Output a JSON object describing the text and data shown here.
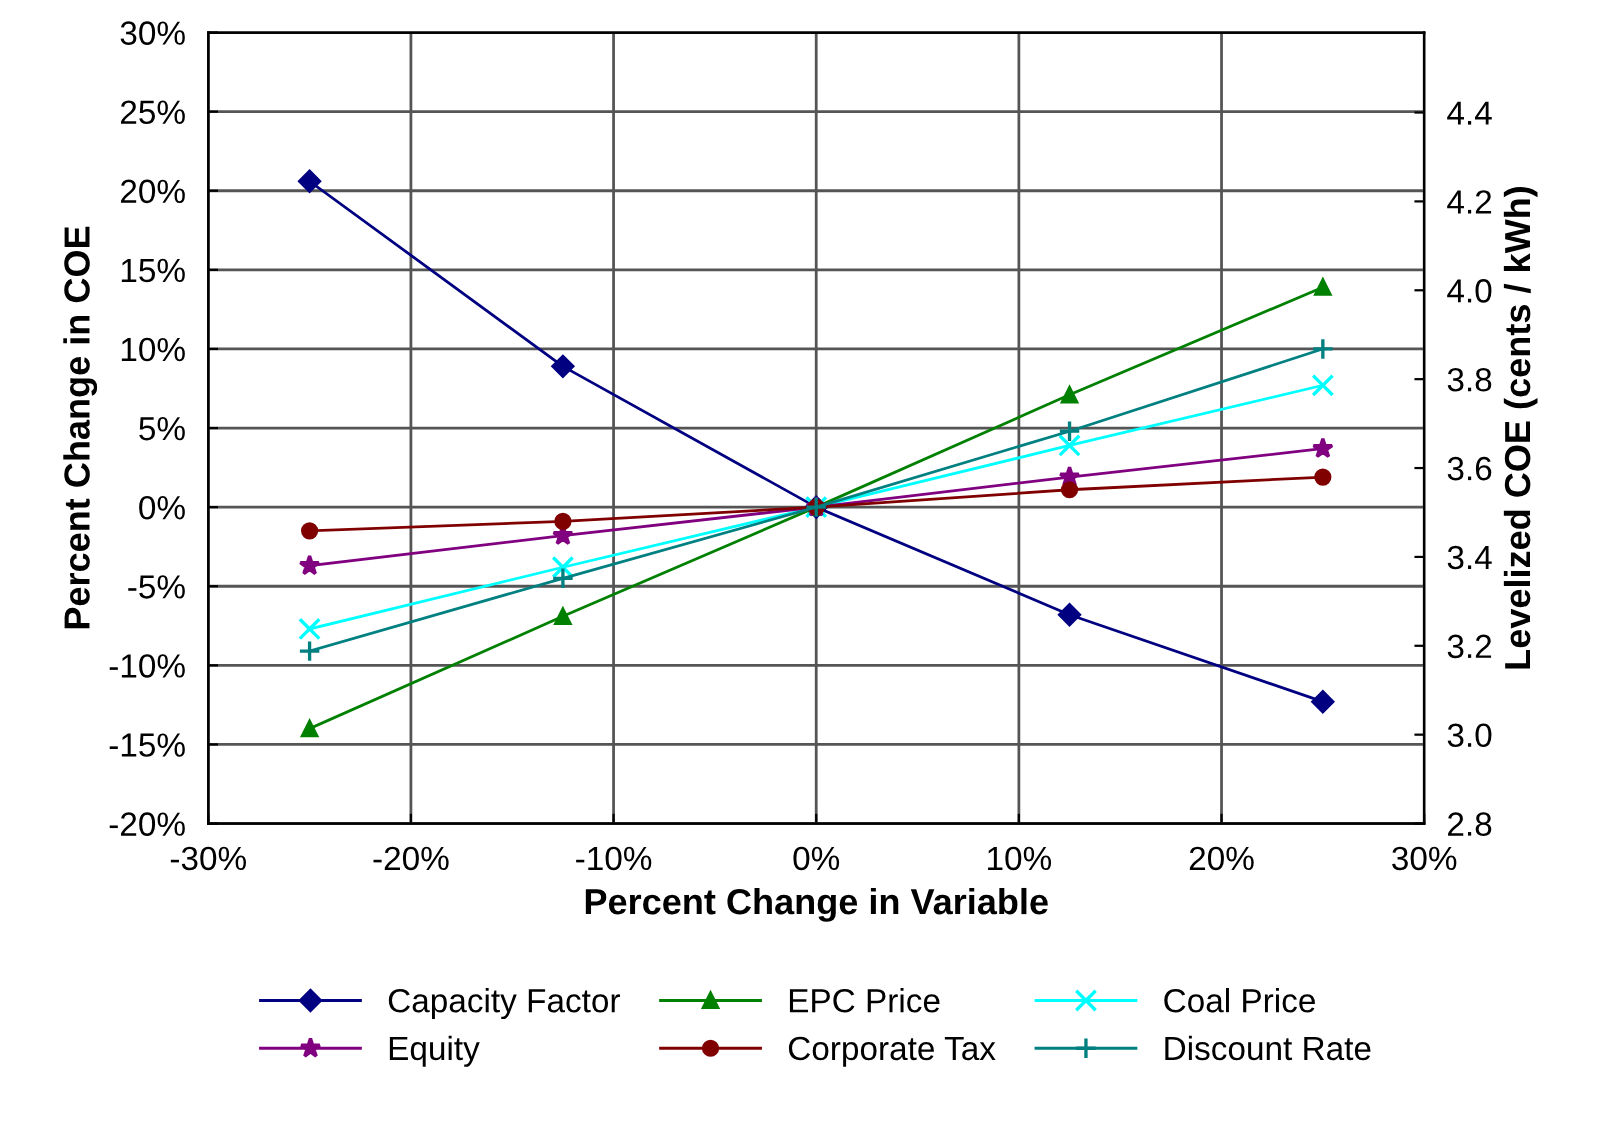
{
  "chart_data": {
    "type": "line",
    "xlabel": "Percent Change in Variable",
    "ylabel": "Percent Change in COE",
    "y2label": "Levelized COE (cents / kWh)",
    "x": [
      -25,
      -12.5,
      0,
      12.5,
      25
    ],
    "xlim": [
      -30,
      30
    ],
    "xticks": [
      {
        "value": -30,
        "label": "-30%"
      },
      {
        "value": -20,
        "label": "-20%"
      },
      {
        "value": -10,
        "label": "-10%"
      },
      {
        "value": 0,
        "label": "0%"
      },
      {
        "value": 10,
        "label": "10%"
      },
      {
        "value": 20,
        "label": "20%"
      },
      {
        "value": 30,
        "label": "30%"
      }
    ],
    "ylim": [
      -20,
      30
    ],
    "yticks": [
      {
        "value": -20,
        "label": "-20%"
      },
      {
        "value": -15,
        "label": "-15%"
      },
      {
        "value": -10,
        "label": "-10%"
      },
      {
        "value": -5,
        "label": "-5%"
      },
      {
        "value": 0,
        "label": "0%"
      },
      {
        "value": 5,
        "label": "5%"
      },
      {
        "value": 10,
        "label": "10%"
      },
      {
        "value": 15,
        "label": "15%"
      },
      {
        "value": 20,
        "label": "20%"
      },
      {
        "value": 25,
        "label": "25%"
      },
      {
        "value": 30,
        "label": "30%"
      }
    ],
    "y2lim": [
      2.8,
      4.58
    ],
    "y2ticks": [
      {
        "value": 2.8,
        "label": "2.8"
      },
      {
        "value": 3.0,
        "label": "3.0"
      },
      {
        "value": 3.2,
        "label": "3.2"
      },
      {
        "value": 3.4,
        "label": "3.4"
      },
      {
        "value": 3.6,
        "label": "3.6"
      },
      {
        "value": 3.8,
        "label": "3.8"
      },
      {
        "value": 4.0,
        "label": "4.0"
      },
      {
        "value": 4.2,
        "label": "4.2"
      },
      {
        "value": 4.4,
        "label": "4.4"
      }
    ],
    "grid": true,
    "legend": "bottom",
    "line_style": "solid",
    "series": [
      {
        "name": "Capacity Factor",
        "color": "#000080",
        "marker": "diamond",
        "values": [
          20.6,
          8.9,
          0,
          -6.8,
          -12.3
        ]
      },
      {
        "name": "EPC Price",
        "color": "#008000",
        "marker": "triangle",
        "values": [
          -14.0,
          -6.9,
          0,
          7.1,
          13.9
        ]
      },
      {
        "name": "Coal Price",
        "color": "#00ffff",
        "marker": "cross",
        "values": [
          -7.7,
          -3.8,
          0,
          3.9,
          7.7
        ]
      },
      {
        "name": "Equity",
        "color": "#800080",
        "marker": "star",
        "values": [
          -3.7,
          -1.8,
          0,
          1.9,
          3.7
        ]
      },
      {
        "name": "Corporate Tax",
        "color": "#800000",
        "marker": "circle",
        "values": [
          -1.5,
          -0.9,
          0,
          1.1,
          1.9
        ]
      },
      {
        "name": "Discount Rate",
        "color": "#008080",
        "marker": "plus",
        "values": [
          -9.1,
          -4.5,
          0,
          4.8,
          10.0
        ]
      }
    ]
  }
}
